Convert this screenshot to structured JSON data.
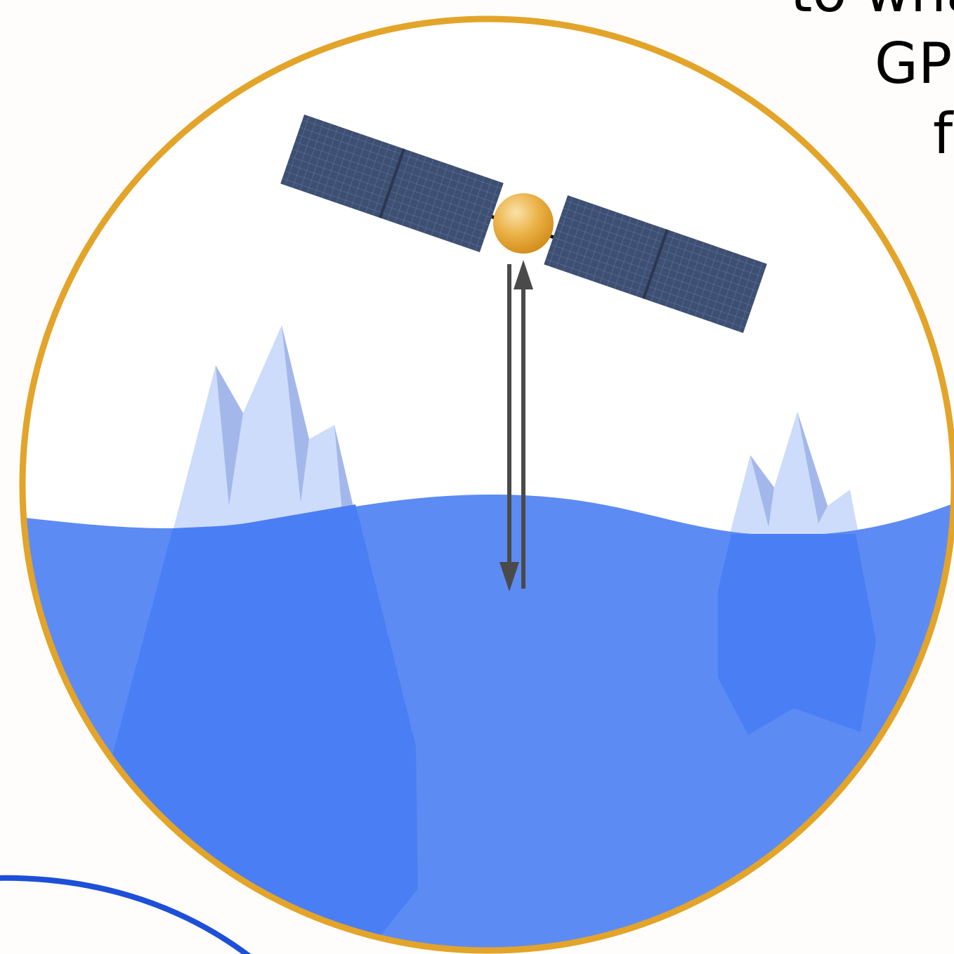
{
  "text_fragments": {
    "line_1": "to wha",
    "line_2": "GP",
    "line_3": "f"
  },
  "colors": {
    "page_background": "#fffdfb",
    "lens_border": "#e3a42a",
    "lens_background": "#ffffff",
    "ocean": "#5d8bf4",
    "iceberg_underwater": "#4a7ef5",
    "iceberg_above": "#cddcfb",
    "iceberg_shadow": "#a4b7ea",
    "solar_panel": "#3d4f72",
    "solar_grid": "#8c9fc4",
    "satellite_body": "#e8a530",
    "signal_arrow": "#4a4a4a",
    "earth_arc": "#1d4fd8"
  },
  "icons": [
    "satellite-icon",
    "iceberg-icon",
    "signal-arrow-down-icon",
    "signal-arrow-up-icon"
  ]
}
